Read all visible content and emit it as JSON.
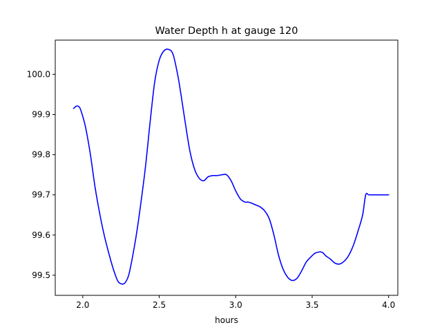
{
  "chart_data": {
    "type": "line",
    "title": "Water Depth h at gauge 120",
    "xlabel": "hours",
    "ylabel": "",
    "xlim": [
      1.82,
      4.06
    ],
    "ylim": [
      99.45,
      100.085
    ],
    "grid": false,
    "x_ticks": [
      2.0,
      2.5,
      3.0,
      3.5,
      4.0
    ],
    "x_tick_labels": [
      "2.0",
      "2.5",
      "3.0",
      "3.5",
      "4.0"
    ],
    "y_ticks": [
      99.5,
      99.6,
      99.7,
      99.8,
      99.9,
      100.0
    ],
    "y_tick_labels": [
      "99.5",
      "99.6",
      "99.7",
      "99.8",
      "99.9",
      "100.0"
    ],
    "series": [
      {
        "color": "#0000ff",
        "x": [
          1.94,
          1.96,
          1.98,
          2.0,
          2.02,
          2.05,
          2.08,
          2.11,
          2.14,
          2.17,
          2.2,
          2.23,
          2.26,
          2.28,
          2.3,
          2.32,
          2.35,
          2.38,
          2.41,
          2.44,
          2.47,
          2.5,
          2.53,
          2.56,
          2.59,
          2.62,
          2.64,
          2.67,
          2.7,
          2.73,
          2.76,
          2.79,
          2.82,
          2.85,
          2.88,
          2.91,
          2.94,
          2.97,
          3.0,
          3.03,
          3.06,
          3.08,
          3.1,
          3.13,
          3.16,
          3.19,
          3.22,
          3.25,
          3.28,
          3.31,
          3.34,
          3.37,
          3.4,
          3.43,
          3.46,
          3.49,
          3.52,
          3.55,
          3.57,
          3.59,
          3.62,
          3.65,
          3.68,
          3.71,
          3.74,
          3.77,
          3.8,
          3.83,
          3.85,
          3.87,
          3.9,
          3.93,
          3.96,
          4.0
        ],
        "y": [
          99.915,
          99.921,
          99.917,
          99.895,
          99.865,
          99.8,
          99.72,
          99.655,
          99.6,
          99.555,
          99.515,
          99.485,
          99.478,
          99.483,
          99.5,
          99.535,
          99.6,
          99.68,
          99.77,
          99.88,
          99.98,
          100.035,
          100.058,
          100.062,
          100.05,
          100.0,
          99.955,
          99.88,
          99.81,
          99.765,
          99.742,
          99.735,
          99.745,
          99.748,
          99.748,
          99.75,
          99.75,
          99.735,
          99.71,
          99.69,
          99.682,
          99.682,
          99.68,
          99.675,
          99.67,
          99.66,
          99.64,
          99.6,
          99.55,
          99.515,
          99.495,
          99.487,
          99.492,
          99.51,
          99.532,
          99.545,
          99.555,
          99.558,
          99.556,
          99.548,
          99.54,
          99.53,
          99.528,
          99.535,
          99.55,
          99.575,
          99.61,
          99.65,
          99.7,
          99.7,
          99.7,
          99.7,
          99.7,
          99.7
        ]
      }
    ]
  }
}
